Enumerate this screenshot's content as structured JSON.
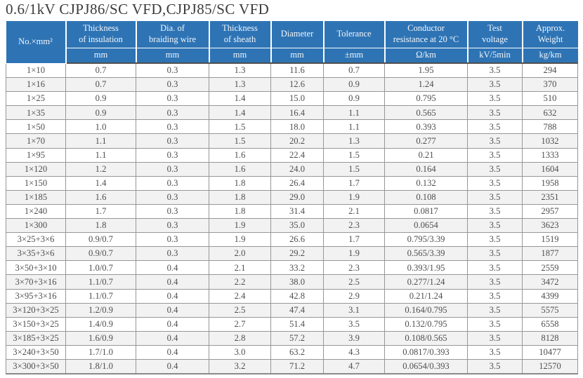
{
  "page": {
    "title": "0.6/1kV CJPJ86/SC VFD,CJPJ85/SC VFD"
  },
  "colors": {
    "header_bg": "#2E74B5",
    "header_text": "#F2F6FA",
    "row_alt_bg": "#F2F2F2",
    "grid_line": "#979797",
    "body_text": "#4E4E4E",
    "title_text": "#3C3C3C"
  },
  "table": {
    "columns": [
      {
        "label": "No.×mm²",
        "unit": ""
      },
      {
        "label": "Thickness\nof insulation",
        "unit": "mm"
      },
      {
        "label": "Dia. of\nbraiding wire",
        "unit": "mm"
      },
      {
        "label": "Thickness\nof sheath",
        "unit": "mm"
      },
      {
        "label": "Diameter",
        "unit": "mm"
      },
      {
        "label": "Tolerance",
        "unit": "±mm"
      },
      {
        "label": "Conductor\nresistance at 20 °C",
        "unit": "Ω/km"
      },
      {
        "label": "Test\nvoltage",
        "unit": "kV/5min"
      },
      {
        "label": "Approx.\nWeight",
        "unit": "kg/km"
      }
    ],
    "rows": [
      [
        "1×10",
        "0.7",
        "0.3",
        "1.3",
        "11.6",
        "0.7",
        "1.95",
        "3.5",
        "294"
      ],
      [
        "1×16",
        "0.7",
        "0.3",
        "1.3",
        "12.6",
        "0.9",
        "1.24",
        "3.5",
        "370"
      ],
      [
        "1×25",
        "0.9",
        "0.3",
        "1.4",
        "15.0",
        "0.9",
        "0.795",
        "3.5",
        "510"
      ],
      [
        "1×35",
        "0.9",
        "0.3",
        "1.4",
        "16.4",
        "1.1",
        "0.565",
        "3.5",
        "632"
      ],
      [
        "1×50",
        "1.0",
        "0.3",
        "1.5",
        "18.0",
        "1.1",
        "0.393",
        "3.5",
        "788"
      ],
      [
        "1×70",
        "1.1",
        "0.3",
        "1.5",
        "20.2",
        "1.3",
        "0.277",
        "3.5",
        "1032"
      ],
      [
        "1×95",
        "1.1",
        "0.3",
        "1.6",
        "22.4",
        "1.5",
        "0.21",
        "3.5",
        "1333"
      ],
      [
        "1×120",
        "1.2",
        "0.3",
        "1.6",
        "24.0",
        "1.5",
        "0.164",
        "3.5",
        "1604"
      ],
      [
        "1×150",
        "1.4",
        "0.3",
        "1.8",
        "26.4",
        "1.7",
        "0.132",
        "3.5",
        "1958"
      ],
      [
        "1×185",
        "1.6",
        "0.3",
        "1.8",
        "29.0",
        "1.9",
        "0.108",
        "3.5",
        "2351"
      ],
      [
        "1×240",
        "1.7",
        "0.3",
        "1.8",
        "31.4",
        "2.1",
        "0.0817",
        "3.5",
        "2957"
      ],
      [
        "1×300",
        "1.8",
        "0.3",
        "1.9",
        "35.0",
        "2.3",
        "0.0654",
        "3.5",
        "3623"
      ],
      [
        "3×25+3×6",
        "0.9/0.7",
        "0.3",
        "1.9",
        "26.6",
        "1.7",
        "0.795/3.39",
        "3.5",
        "1519"
      ],
      [
        "3×35+3×6",
        "0.9/0.7",
        "0.3",
        "2.0",
        "29.2",
        "1.9",
        "0.565/3.39",
        "3.5",
        "1877"
      ],
      [
        "3×50+3×10",
        "1.0/0.7",
        "0.4",
        "2.1",
        "33.2",
        "2.3",
        "0.393/1.95",
        "3.5",
        "2559"
      ],
      [
        "3×70+3×16",
        "1.1/0.7",
        "0.4",
        "2.2",
        "38.0",
        "2.5",
        "0.277/1.24",
        "3.5",
        "3472"
      ],
      [
        "3×95+3×16",
        "1.1/0.7",
        "0.4",
        "2.4",
        "42.8",
        "2.9",
        "0.21/1.24",
        "3.5",
        "4399"
      ],
      [
        "3×120+3×25",
        "1.2/0.9",
        "0.4",
        "2.5",
        "47.4",
        "3.1",
        "0.164/0.795",
        "3.5",
        "5575"
      ],
      [
        "3×150+3×25",
        "1.4/0.9",
        "0.4",
        "2.7",
        "51.4",
        "3.5",
        "0.132/0.795",
        "3.5",
        "6558"
      ],
      [
        "3×185+3×25",
        "1.6/0.9",
        "0.4",
        "2.8",
        "57.2",
        "3.9",
        "0.108/0.565",
        "3.5",
        "8128"
      ],
      [
        "3×240+3×50",
        "1.7/1.0",
        "0.4",
        "3.0",
        "63.2",
        "4.3",
        "0.0817/0.393",
        "3.5",
        "10477"
      ],
      [
        "3×300+3×50",
        "1.8/1.0",
        "0.4",
        "3.2",
        "71.2",
        "4.7",
        "0.0654/0.393",
        "3.5",
        "12570"
      ]
    ]
  }
}
